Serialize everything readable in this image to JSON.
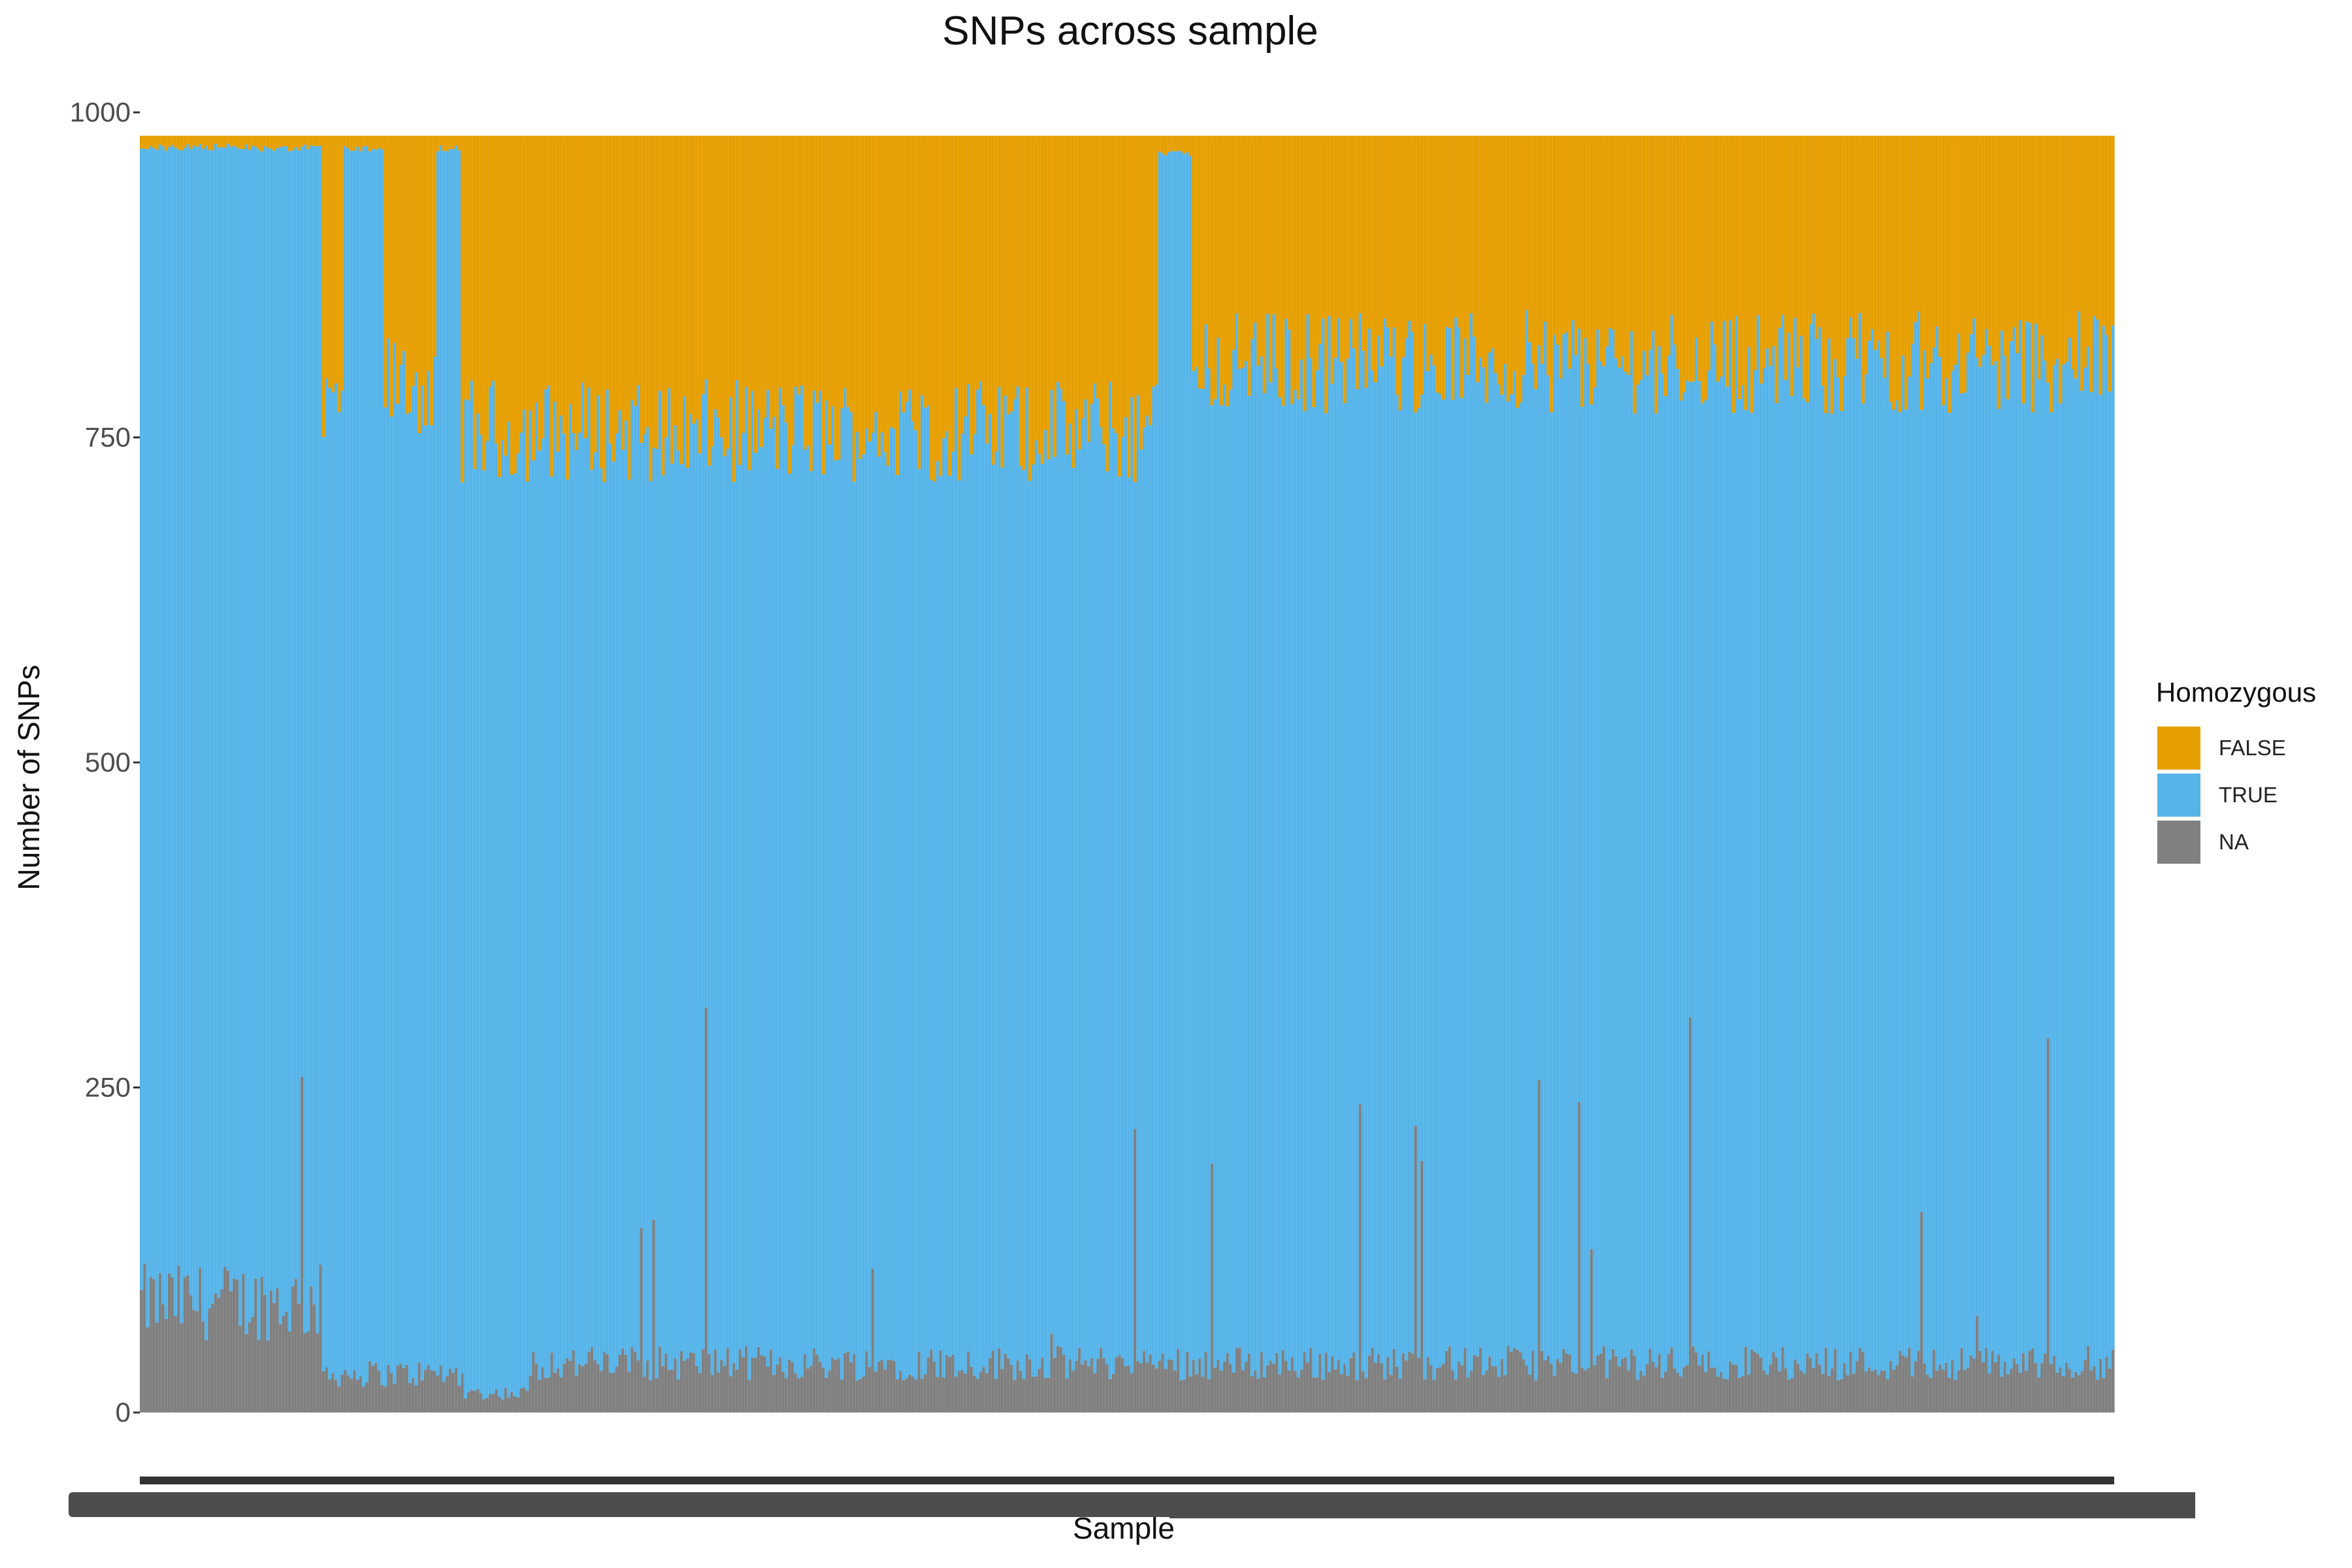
{
  "chart_data": {
    "type": "bar",
    "stacked": true,
    "title": "SNPs across sample",
    "xlabel": "Sample",
    "ylabel": "Number of SNPs",
    "ylim": [
      0,
      1000
    ],
    "yticks": [
      0,
      250,
      500,
      750,
      1000
    ],
    "legend": {
      "title": "Homozygous",
      "position": "right"
    },
    "sample_count": 640,
    "total_per_sample": 982,
    "series": [
      {
        "name": "FALSE",
        "color": "#E69F00"
      },
      {
        "name": "TRUE",
        "color": "#56B4E9"
      },
      {
        "name": "NA",
        "color": "#808080"
      }
    ],
    "na_profile": [
      {
        "from": 0,
        "to": 58,
        "level": 85
      },
      {
        "from": 59,
        "to": 104,
        "level": 30
      },
      {
        "from": 105,
        "to": 125,
        "level": 15
      },
      {
        "from": 126,
        "to": 639,
        "level": 38
      }
    ],
    "true_profile": [
      {
        "from": 0,
        "to": 58,
        "level": 976
      },
      {
        "from": 59,
        "to": 65,
        "level": 770
      },
      {
        "from": 66,
        "to": 78,
        "level": 976
      },
      {
        "from": 79,
        "to": 95,
        "level": 790
      },
      {
        "from": 96,
        "to": 103,
        "level": 976
      },
      {
        "from": 104,
        "to": 329,
        "level": 755
      },
      {
        "from": 330,
        "to": 340,
        "level": 972
      },
      {
        "from": 341,
        "to": 639,
        "level": 808
      }
    ],
    "grid": false
  }
}
